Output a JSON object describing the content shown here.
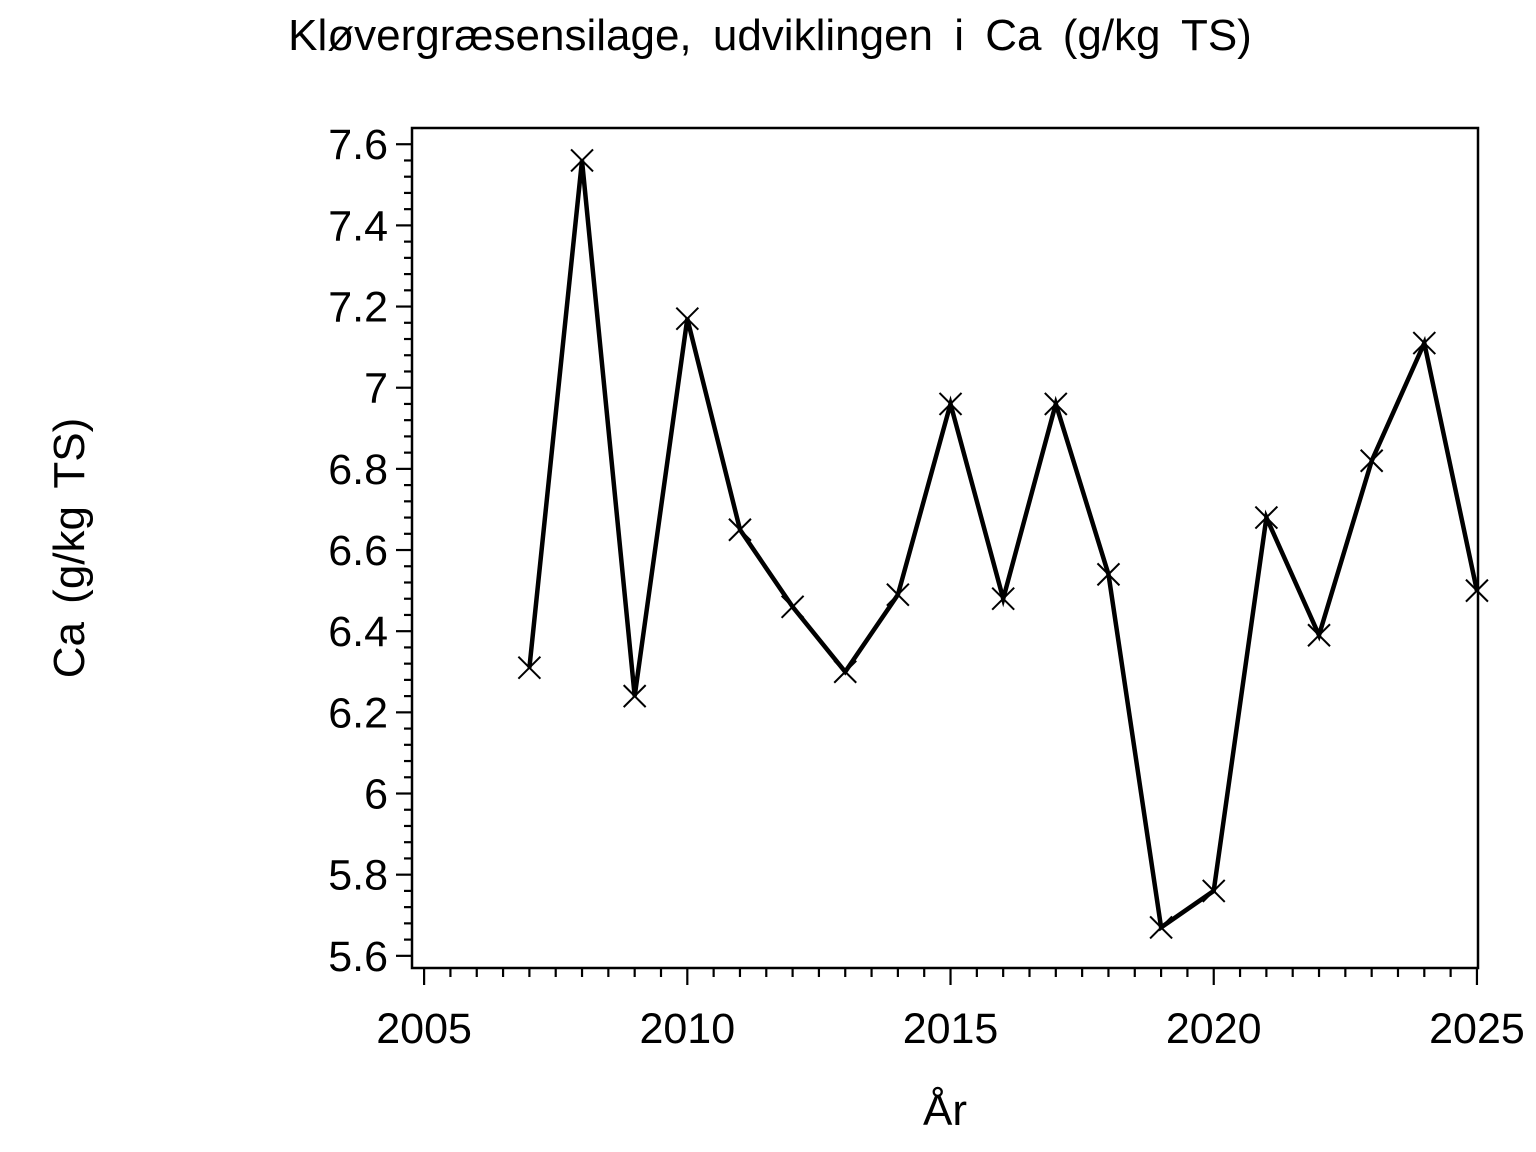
{
  "page": {
    "background": "#ffffff",
    "foreground": "#000000"
  },
  "chart_data": {
    "type": "line",
    "title": "Kløvergræsensilage, udviklingen i Ca (g/kg TS)",
    "xlabel": "År",
    "ylabel": "Ca (g/kg TS)",
    "series": [
      {
        "name": "Ca (g/kg TS)",
        "marker": "x",
        "color": "#000000",
        "x": [
          2007,
          2008,
          2009,
          2010,
          2011,
          2012,
          2013,
          2014,
          2015,
          2016,
          2017,
          2018,
          2019,
          2020,
          2021,
          2022,
          2023,
          2024,
          2025
        ],
        "values": [
          6.31,
          7.56,
          6.24,
          7.17,
          6.65,
          6.46,
          6.3,
          6.49,
          6.96,
          6.48,
          6.96,
          6.54,
          5.67,
          5.76,
          6.68,
          6.39,
          6.82,
          7.11,
          6.5
        ]
      }
    ],
    "x_ticks": [
      2005,
      2010,
      2015,
      2020,
      2025
    ],
    "x_tick_labels": [
      "2005",
      "2010",
      "2015",
      "2020",
      "2025"
    ],
    "y_ticks": [
      5.6,
      5.8,
      6,
      6.2,
      6.4,
      6.6,
      6.8,
      7,
      7.2,
      7.4,
      7.6
    ],
    "y_tick_labels": [
      "5.6",
      "5.8",
      "6",
      "6.2",
      "6.4",
      "6.6",
      "6.8",
      "7",
      "7.2",
      "7.4",
      "7.6"
    ],
    "x_minor_step": 0.5,
    "y_minor_step": 0.04,
    "xlim": [
      2004.77,
      2025.02
    ],
    "ylim": [
      5.57,
      7.64
    ],
    "grid": false,
    "legend_position": "none",
    "frame": "box"
  }
}
